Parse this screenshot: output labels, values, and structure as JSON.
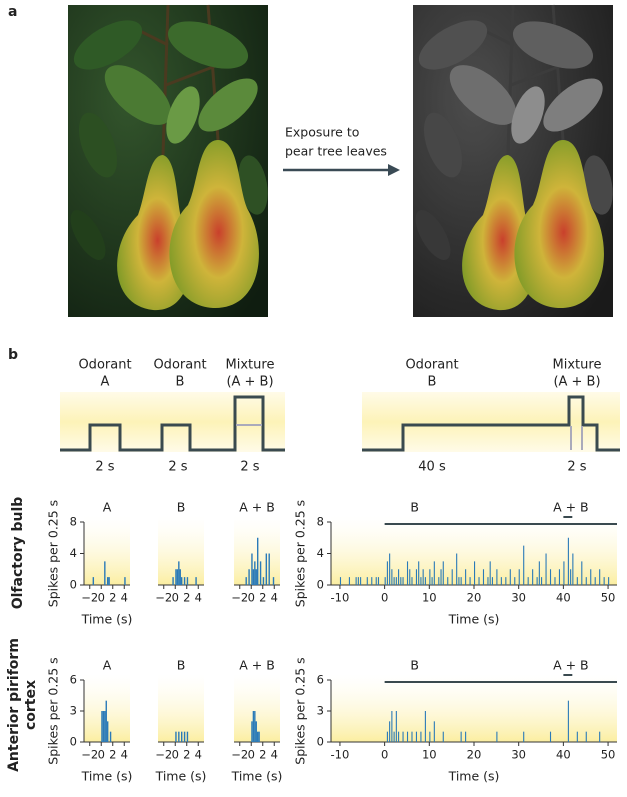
{
  "panel_labels": [
    "a",
    "b"
  ],
  "arrow_text": [
    "Exposure to",
    "pear tree leaves"
  ],
  "stimulus": {
    "left": [
      {
        "lines": [
          "Odorant",
          "A"
        ],
        "duration": "2 s"
      },
      {
        "lines": [
          "Odorant",
          "B"
        ],
        "duration": "2 s"
      },
      {
        "lines": [
          "Mixture",
          "(A + B)"
        ],
        "duration": "2 s"
      }
    ],
    "right": [
      {
        "lines": [
          "Odorant",
          "B"
        ],
        "duration": "40 s"
      },
      {
        "lines": [
          "Mixture",
          "(A + B)"
        ],
        "duration": "2 s"
      }
    ]
  },
  "row_labels": [
    [
      "Olfactory bulb"
    ],
    [
      "Anterior piriform",
      "cortex"
    ]
  ],
  "chart_data": [
    {
      "type": "bar",
      "title": "A",
      "color": "#2a7ab8",
      "xlim": [
        -3,
        5
      ],
      "ylim": [
        0,
        8
      ],
      "xticks": [
        {
          "value": -2,
          "label": "−2"
        },
        0,
        2,
        4
      ],
      "yticks": [
        0,
        4,
        8
      ],
      "xlabel": "Time (s)",
      "ylabel": "Spikes per 0.25 s",
      "x": [
        -1.5,
        0.5,
        1,
        1.25,
        4
      ],
      "values": [
        1,
        3,
        1,
        1,
        1
      ]
    },
    {
      "type": "bar",
      "title": "B",
      "color": "#2a7ab8",
      "xlim": [
        -3,
        5
      ],
      "ylim": [
        0,
        8
      ],
      "xticks": [
        {
          "value": -2,
          "label": "−2"
        },
        0,
        2,
        4
      ],
      "x": [
        -0.5,
        0,
        0.25,
        0.5,
        0.75,
        1,
        1.5,
        2,
        3.5
      ],
      "values": [
        1,
        2,
        2,
        3,
        2,
        1,
        1,
        1,
        1
      ]
    },
    {
      "type": "bar",
      "title": "A + B",
      "color": "#2a7ab8",
      "xlim": [
        -3,
        5
      ],
      "ylim": [
        0,
        8
      ],
      "xticks": [
        {
          "value": -2,
          "label": "−2"
        },
        0,
        2,
        4
      ],
      "x": [
        -1,
        -0.5,
        0,
        0.25,
        0.5,
        0.75,
        1,
        1.5,
        2,
        2.5,
        3,
        3.75
      ],
      "values": [
        1,
        2,
        4,
        2,
        3,
        2,
        6,
        3,
        1,
        4,
        4,
        1
      ]
    },
    {
      "type": "bar",
      "color": "#2a7ab8",
      "xlim": [
        -12,
        52
      ],
      "ylim": [
        0,
        8
      ],
      "xticks": [
        {
          "value": -10,
          "label": "-10"
        },
        0,
        10,
        20,
        30,
        40,
        50
      ],
      "yticks": [
        0,
        4,
        8
      ],
      "xlabel": "Time (s)",
      "ylabel": "Spikes per 0.25 s",
      "annotations": [
        {
          "text": "B",
          "start": 0,
          "end": 52
        },
        {
          "text": "A + B",
          "start": 40,
          "end": 42
        }
      ],
      "x": [
        -10,
        -8,
        -6.5,
        -6,
        -5.5,
        -4,
        -3,
        -2,
        -1.5,
        0,
        0.5,
        1,
        1.5,
        2,
        2.5,
        3,
        3.5,
        4,
        5,
        5.5,
        6,
        7,
        7.5,
        8,
        8.5,
        9,
        10,
        10.5,
        11,
        12,
        12.5,
        13,
        14,
        15,
        16,
        16.5,
        17,
        18,
        19,
        20,
        21,
        22,
        23,
        23.5,
        24,
        25,
        26,
        27,
        28,
        29,
        30,
        31,
        32,
        33,
        34,
        34.5,
        35,
        36,
        37,
        38,
        39,
        40,
        41,
        41.5,
        42,
        43,
        44,
        45,
        46,
        47,
        48,
        49,
        50
      ],
      "values": [
        1,
        1,
        1,
        1,
        1,
        1,
        1,
        1,
        1,
        1,
        3,
        4,
        2,
        1,
        1,
        2,
        1,
        1,
        3,
        2,
        1,
        2,
        3,
        1,
        2,
        1,
        2,
        1,
        3,
        1,
        2,
        3,
        1,
        2,
        4,
        1,
        1,
        2,
        1,
        3,
        1,
        2,
        1,
        3,
        1,
        2,
        1,
        1,
        2,
        1,
        2,
        5,
        1,
        2,
        1,
        3,
        1,
        4,
        2,
        1,
        2,
        3,
        6,
        2,
        4,
        1,
        3,
        1,
        2,
        1,
        2,
        1,
        1
      ]
    },
    {
      "type": "bar",
      "title": "A",
      "color": "#2a7ab8",
      "xlim": [
        -3,
        5
      ],
      "ylim": [
        0,
        6
      ],
      "xticks": [
        {
          "value": -2,
          "label": "−2"
        },
        0,
        2,
        4
      ],
      "yticks": [
        0,
        3,
        6
      ],
      "xlabel": "Time (s)",
      "ylabel": "Spikes per 0.25 s",
      "x": [
        0,
        0.25,
        0.5,
        0.75,
        1,
        1.5
      ],
      "values": [
        3,
        3,
        3,
        4,
        2,
        1
      ]
    },
    {
      "type": "bar",
      "title": "B",
      "color": "#2a7ab8",
      "xlim": [
        -3,
        5
      ],
      "ylim": [
        0,
        6
      ],
      "xticks": [
        {
          "value": -2,
          "label": "−2"
        },
        0,
        2,
        4
      ],
      "xlabel": "Time (s)",
      "x": [
        0,
        0.5,
        1,
        1.5,
        2
      ],
      "values": [
        1,
        1,
        1,
        1,
        1
      ]
    },
    {
      "type": "bar",
      "title": "A + B",
      "color": "#2a7ab8",
      "xlim": [
        -3,
        5
      ],
      "ylim": [
        0,
        6
      ],
      "xticks": [
        {
          "value": -2,
          "label": "−2"
        },
        0,
        2,
        4
      ],
      "xlabel": "Time (s)",
      "x": [
        0,
        0.25,
        0.5,
        0.75,
        1,
        1.25
      ],
      "values": [
        2,
        3,
        3,
        2,
        1,
        1
      ]
    },
    {
      "type": "bar",
      "color": "#2a7ab8",
      "xlim": [
        -12,
        52
      ],
      "ylim": [
        0,
        6
      ],
      "xticks": [
        {
          "value": -10,
          "label": "-10"
        },
        0,
        10,
        20,
        30,
        40,
        50
      ],
      "yticks": [
        0,
        3,
        6
      ],
      "xlabel": "Time (s)",
      "ylabel": "Spikes per 0.25 s",
      "annotations": [
        {
          "text": "B",
          "start": 0,
          "end": 52
        },
        {
          "text": "A + B",
          "start": 40,
          "end": 42
        }
      ],
      "x": [
        0.5,
        1,
        1.5,
        2,
        2.5,
        3,
        4,
        5,
        6,
        7,
        8,
        9,
        10,
        11,
        13,
        17,
        18,
        25,
        31,
        37,
        41,
        43,
        45,
        48
      ],
      "values": [
        1,
        2,
        3,
        1,
        3,
        1,
        1,
        1,
        1,
        1,
        1,
        3,
        1,
        2,
        1,
        1,
        1,
        1,
        1,
        1,
        4,
        1,
        1,
        1
      ]
    }
  ]
}
